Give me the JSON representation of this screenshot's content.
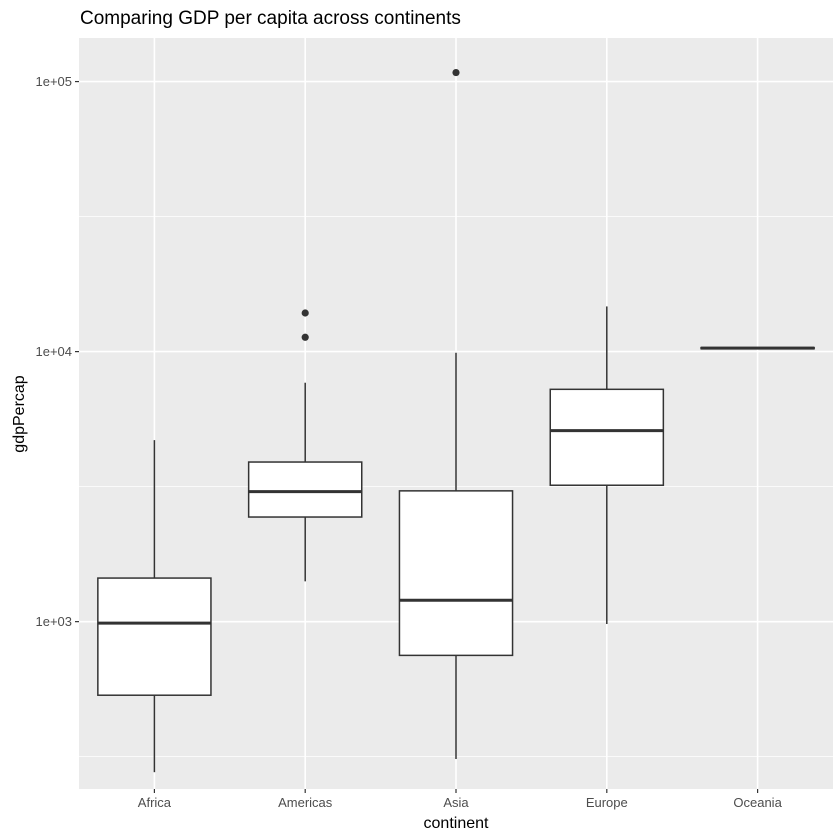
{
  "chart_data": {
    "type": "box",
    "title": "Comparing GDP per capita across continents",
    "xlabel": "continent",
    "ylabel": "gdpPercap",
    "yscale": "log10",
    "ylim": [
      240,
      145000
    ],
    "yticks": [
      1000,
      10000,
      100000
    ],
    "ytick_labels": [
      "1e+03",
      "1e+04",
      "1e+05"
    ],
    "categories": [
      "Africa",
      "Americas",
      "Asia",
      "Europe",
      "Oceania"
    ],
    "grid": true,
    "legend": "none",
    "boxes": [
      {
        "category": "Africa",
        "whisker_low": 277,
        "q1": 534,
        "median": 987,
        "q3": 1450,
        "whisker_high": 4700,
        "outliers": []
      },
      {
        "category": "Americas",
        "whisker_low": 1410,
        "q1": 2440,
        "median": 3030,
        "q3": 3900,
        "whisker_high": 7670,
        "outliers": [
          11300,
          13900
        ]
      },
      {
        "category": "Asia",
        "whisker_low": 310,
        "q1": 750,
        "median": 1200,
        "q3": 3050,
        "whisker_high": 9900,
        "outliers": [
          108000
        ]
      },
      {
        "category": "Europe",
        "whisker_low": 980,
        "q1": 3200,
        "median": 5100,
        "q3": 7250,
        "whisker_high": 14700,
        "outliers": []
      },
      {
        "category": "Oceania",
        "whisker_low": 10200,
        "q1": 10250,
        "median": 10300,
        "q3": 10350,
        "whisker_high": 10400,
        "outliers": []
      }
    ],
    "colors": {
      "panel_bg": "#ebebeb",
      "grid": "#ffffff",
      "box_fill": "#ffffff",
      "box_line": "#333333",
      "text": "#4d4d4d",
      "title": "#000000"
    }
  }
}
